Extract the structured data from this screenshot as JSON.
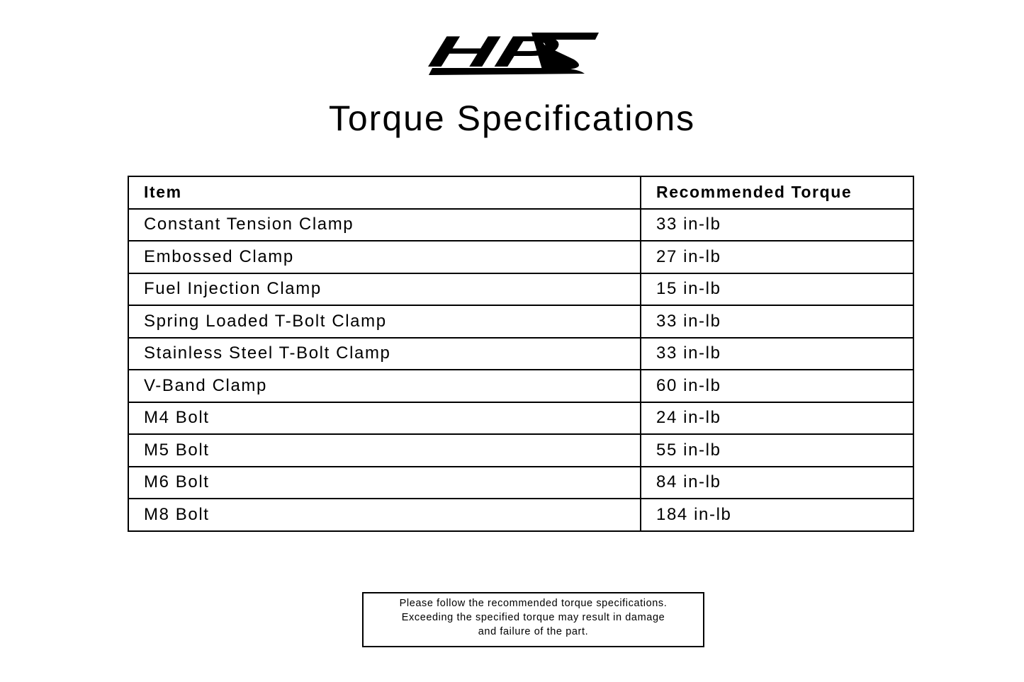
{
  "logo": {
    "text": "HPS"
  },
  "title": "Torque Specifications",
  "table": {
    "headers": [
      "Item",
      "Recommended Torque"
    ],
    "rows": [
      [
        "Constant Tension Clamp",
        "33 in-lb"
      ],
      [
        "Embossed Clamp",
        "27 in-lb"
      ],
      [
        "Fuel Injection Clamp",
        "15 in-lb"
      ],
      [
        "Spring Loaded T-Bolt Clamp",
        "33 in-lb"
      ],
      [
        "Stainless Steel T-Bolt Clamp",
        "33 in-lb"
      ],
      [
        "V-Band Clamp",
        "60 in-lb"
      ],
      [
        "M4 Bolt",
        "24 in-lb"
      ],
      [
        "M5 Bolt",
        "55 in-lb"
      ],
      [
        "M6 Bolt",
        "84 in-lb"
      ],
      [
        "M8 Bolt",
        "184 in-lb"
      ]
    ]
  },
  "notice": {
    "lines": [
      "Please follow the recommended torque specifications.",
      "Exceeding the specified torque may result in damage",
      "and failure of the part."
    ]
  }
}
